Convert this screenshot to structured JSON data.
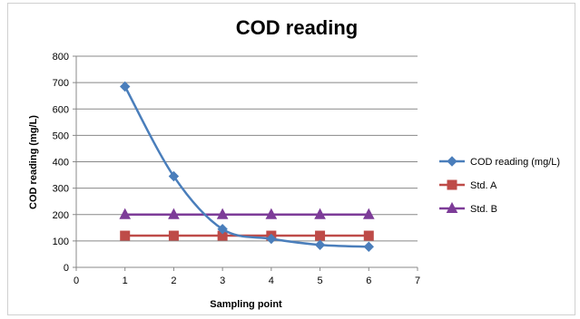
{
  "chart_data": {
    "type": "line",
    "title": "COD reading",
    "xlabel": "Sampling point",
    "ylabel": "COD reading (mg/L)",
    "xlim": [
      0,
      7
    ],
    "ylim": [
      0,
      800
    ],
    "xticks": [
      0,
      1,
      2,
      3,
      4,
      5,
      6,
      7
    ],
    "yticks": [
      0,
      100,
      200,
      300,
      400,
      500,
      600,
      700,
      800
    ],
    "grid": "horizontal",
    "legend_position": "right",
    "series": [
      {
        "name": "COD reading (mg/L)",
        "color": "#4a7ebb",
        "marker": "diamond",
        "smooth": true,
        "x": [
          1,
          2,
          3,
          4,
          5,
          6
        ],
        "y": [
          685,
          345,
          145,
          108,
          85,
          78
        ]
      },
      {
        "name": "Std. A",
        "color": "#be4b48",
        "marker": "square",
        "smooth": false,
        "x": [
          1,
          2,
          3,
          4,
          5,
          6
        ],
        "y": [
          120,
          120,
          120,
          120,
          120,
          120
        ]
      },
      {
        "name": "Std. B",
        "color": "#7d3c98",
        "marker": "triangle",
        "smooth": false,
        "x": [
          1,
          2,
          3,
          4,
          5,
          6
        ],
        "y": [
          200,
          200,
          200,
          200,
          200,
          200
        ]
      }
    ]
  }
}
